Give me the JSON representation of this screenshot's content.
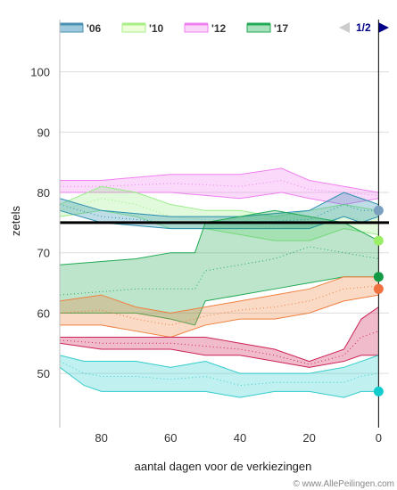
{
  "chart_data": {
    "type": "line",
    "xlabel": "aantal dagen voor de verkiezingen",
    "ylabel": "zetels",
    "xlim": [
      92,
      -3
    ],
    "ylim": [
      41,
      106
    ],
    "x_ticks": [
      80,
      60,
      40,
      20,
      0
    ],
    "y_ticks": [
      50,
      60,
      70,
      80,
      90,
      100
    ],
    "grid": true,
    "reference_line": 75,
    "legend": {
      "placement": "top",
      "entries": [
        "'06",
        "'10",
        "'12",
        "'17"
      ]
    },
    "pager": "1/2",
    "credit": "© www.AllePeilingen.com",
    "series": [
      {
        "color": "#f080f0",
        "x": [
          92,
          80,
          60,
          40,
          28,
          20,
          10,
          0
        ],
        "upper": [
          82,
          82,
          83,
          83,
          84,
          82,
          81,
          80
        ],
        "lower": [
          80,
          80,
          80,
          79,
          80,
          79,
          78,
          79
        ],
        "mid": [
          81,
          81,
          81.5,
          81,
          82,
          80.5,
          80,
          79.5
        ]
      },
      {
        "color": "#99ee88",
        "x": [
          92,
          80,
          70,
          60,
          50,
          40,
          30,
          20,
          10,
          0
        ],
        "upper": [
          78,
          81,
          80,
          78,
          77,
          77,
          76,
          77,
          78,
          77
        ],
        "lower": [
          76,
          77,
          76,
          74,
          74,
          73,
          72,
          72,
          74,
          73
        ],
        "mid": [
          77,
          79,
          78,
          76,
          75.5,
          75,
          74,
          74.5,
          76,
          75
        ]
      },
      {
        "color": "#2b8fb0",
        "x": [
          92,
          80,
          60,
          40,
          20,
          10,
          5,
          0
        ],
        "upper": [
          79,
          77,
          76,
          76,
          77,
          80,
          79,
          78
        ],
        "lower": [
          77,
          75,
          74,
          74,
          74,
          76,
          75,
          76
        ],
        "mid": [
          78,
          76,
          75,
          75,
          75.5,
          78,
          77,
          77
        ]
      },
      {
        "color": "#22aa55",
        "x": [
          92,
          70,
          60,
          53,
          50,
          40,
          30,
          20,
          10,
          0
        ],
        "upper": [
          68,
          69,
          70,
          70,
          75,
          76,
          77,
          76,
          75,
          72
        ],
        "lower": [
          60,
          60,
          59,
          58,
          62,
          63,
          64,
          65,
          66,
          66
        ],
        "mid": [
          63,
          64,
          64,
          64,
          67,
          68,
          69,
          71,
          70,
          69
        ]
      },
      {
        "color": "#f08040",
        "x": [
          92,
          80,
          70,
          60,
          50,
          40,
          30,
          20,
          10,
          0
        ],
        "upper": [
          62,
          63,
          61,
          60,
          61,
          62,
          63,
          64,
          66,
          66
        ],
        "lower": [
          58,
          58,
          57,
          56,
          58,
          59,
          59,
          60,
          62,
          63
        ],
        "mid": [
          60,
          60.5,
          59,
          58,
          59.5,
          60.5,
          61,
          62,
          64,
          64.5
        ]
      },
      {
        "color": "#cc2255",
        "x": [
          92,
          80,
          60,
          50,
          40,
          30,
          20,
          10,
          5,
          0
        ],
        "upper": [
          56,
          56,
          56,
          56,
          55,
          54,
          52,
          54,
          59,
          61
        ],
        "lower": [
          55,
          54,
          54,
          53,
          53,
          52,
          51,
          52,
          53,
          53
        ],
        "mid": [
          55.5,
          55,
          55,
          54.5,
          54,
          53,
          51.5,
          53,
          56,
          57
        ]
      },
      {
        "color": "#33cccc",
        "x": [
          92,
          85,
          80,
          70,
          60,
          50,
          40,
          30,
          20,
          10,
          5,
          0
        ],
        "upper": [
          53,
          52,
          52,
          52,
          51,
          52,
          50,
          50,
          50,
          51,
          52,
          53
        ],
        "lower": [
          51,
          48,
          47,
          47,
          47,
          47,
          46,
          47,
          47,
          46,
          47,
          47
        ],
        "mid": [
          52,
          50,
          49.5,
          49.5,
          49,
          49.5,
          48,
          48.5,
          48.5,
          48.5,
          49.5,
          50
        ]
      }
    ],
    "endpoints": [
      {
        "y": 77,
        "color": "#7aa0c0"
      },
      {
        "y": 72,
        "color": "#99ee66"
      },
      {
        "y": 66,
        "color": "#119944"
      },
      {
        "y": 64,
        "color": "#f07040"
      },
      {
        "y": 47,
        "color": "#11cccc"
      }
    ]
  }
}
